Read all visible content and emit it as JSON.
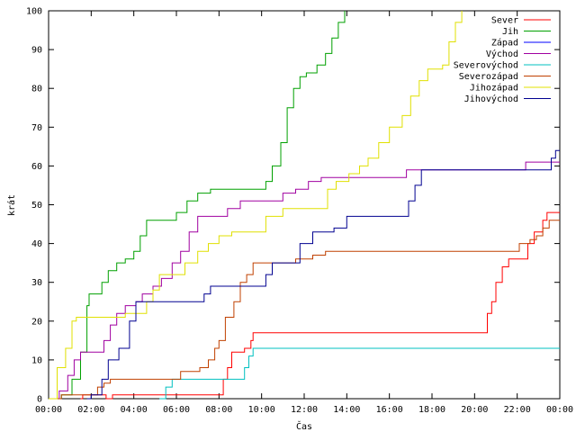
{
  "chart_data": {
    "type": "line",
    "title": "",
    "xlabel": "Čas",
    "ylabel": "krát",
    "xlim": [
      0,
      24
    ],
    "ylim": [
      0,
      100
    ],
    "x_ticks": [
      {
        "value": 0,
        "label": "00:00"
      },
      {
        "value": 2,
        "label": "02:00"
      },
      {
        "value": 4,
        "label": "04:00"
      },
      {
        "value": 6,
        "label": "06:00"
      },
      {
        "value": 8,
        "label": "08:00"
      },
      {
        "value": 10,
        "label": "10:00"
      },
      {
        "value": 12,
        "label": "12:00"
      },
      {
        "value": 14,
        "label": "14:00"
      },
      {
        "value": 16,
        "label": "16:00"
      },
      {
        "value": 18,
        "label": "18:00"
      },
      {
        "value": 20,
        "label": "20:00"
      },
      {
        "value": 22,
        "label": "22:00"
      },
      {
        "value": 24,
        "label": "00:00"
      }
    ],
    "y_ticks": [
      0,
      10,
      20,
      30,
      40,
      50,
      60,
      70,
      80,
      90,
      100
    ],
    "grid": false,
    "legend_position": "top-right",
    "series": [
      {
        "name": "Sever",
        "color": "#ff0000",
        "points": [
          [
            1.5,
            0
          ],
          [
            1.6,
            1
          ],
          [
            2.6,
            1
          ],
          [
            2.7,
            0
          ],
          [
            2.9,
            0
          ],
          [
            3.0,
            1
          ],
          [
            4.0,
            1
          ],
          [
            4.1,
            1
          ],
          [
            6.5,
            1
          ],
          [
            8.0,
            1
          ],
          [
            8.2,
            5
          ],
          [
            8.4,
            8
          ],
          [
            8.6,
            12
          ],
          [
            9.2,
            13
          ],
          [
            9.5,
            15
          ],
          [
            9.6,
            17
          ],
          [
            20.4,
            17
          ],
          [
            20.6,
            22
          ],
          [
            20.8,
            25
          ],
          [
            21.0,
            30
          ],
          [
            21.3,
            34
          ],
          [
            21.6,
            36
          ],
          [
            22.2,
            36
          ],
          [
            22.5,
            40
          ],
          [
            22.8,
            43
          ],
          [
            23.2,
            46
          ],
          [
            23.4,
            48
          ],
          [
            24,
            48
          ]
        ]
      },
      {
        "name": "Jih",
        "color": "#00a000",
        "points": [
          [
            0,
            0
          ],
          [
            0.6,
            1
          ],
          [
            1.1,
            5
          ],
          [
            1.5,
            12
          ],
          [
            1.8,
            24
          ],
          [
            1.9,
            27
          ],
          [
            2.3,
            27
          ],
          [
            2.5,
            30
          ],
          [
            2.8,
            33
          ],
          [
            3.2,
            35
          ],
          [
            3.6,
            36
          ],
          [
            4.0,
            38
          ],
          [
            4.3,
            42
          ],
          [
            4.6,
            46
          ],
          [
            5.6,
            46
          ],
          [
            6.0,
            48
          ],
          [
            6.5,
            51
          ],
          [
            7.0,
            53
          ],
          [
            7.6,
            54
          ],
          [
            9.9,
            54
          ],
          [
            10.2,
            56
          ],
          [
            10.5,
            60
          ],
          [
            10.9,
            66
          ],
          [
            11.2,
            75
          ],
          [
            11.5,
            80
          ],
          [
            11.8,
            83
          ],
          [
            12.1,
            84
          ],
          [
            12.6,
            86
          ],
          [
            13.0,
            89
          ],
          [
            13.3,
            93
          ],
          [
            13.6,
            97
          ],
          [
            13.9,
            100
          ]
        ]
      },
      {
        "name": "Západ",
        "color": "#0000ff",
        "points": []
      },
      {
        "name": "Východ",
        "color": "#a000a0",
        "points": [
          [
            0,
            0
          ],
          [
            0.5,
            2
          ],
          [
            0.9,
            6
          ],
          [
            1.2,
            10
          ],
          [
            1.5,
            12
          ],
          [
            2.2,
            12
          ],
          [
            2.6,
            15
          ],
          [
            2.9,
            19
          ],
          [
            3.2,
            22
          ],
          [
            3.6,
            24
          ],
          [
            4.1,
            25
          ],
          [
            4.4,
            27
          ],
          [
            4.9,
            29
          ],
          [
            5.3,
            31
          ],
          [
            5.8,
            35
          ],
          [
            6.2,
            38
          ],
          [
            6.6,
            43
          ],
          [
            7.0,
            47
          ],
          [
            7.8,
            47
          ],
          [
            8.4,
            49
          ],
          [
            9.0,
            51
          ],
          [
            10.4,
            51
          ],
          [
            11.0,
            53
          ],
          [
            11.6,
            54
          ],
          [
            12.2,
            56
          ],
          [
            12.8,
            57
          ],
          [
            16.0,
            57
          ],
          [
            16.8,
            59
          ],
          [
            22.0,
            59
          ],
          [
            22.4,
            61
          ],
          [
            24,
            61
          ]
        ]
      },
      {
        "name": "Severovýchod",
        "color": "#00c0c0",
        "points": [
          [
            5.2,
            0
          ],
          [
            5.5,
            3
          ],
          [
            5.8,
            5
          ],
          [
            9.0,
            5
          ],
          [
            9.2,
            8
          ],
          [
            9.4,
            11
          ],
          [
            9.6,
            13
          ],
          [
            24,
            13
          ]
        ]
      },
      {
        "name": "Severozápad",
        "color": "#c04000",
        "points": [
          [
            0.4,
            0
          ],
          [
            0.6,
            1
          ],
          [
            2.1,
            1
          ],
          [
            2.3,
            3
          ],
          [
            2.6,
            4
          ],
          [
            2.9,
            5
          ],
          [
            5.6,
            5
          ],
          [
            6.2,
            7
          ],
          [
            6.9,
            7
          ],
          [
            7.1,
            8
          ],
          [
            7.5,
            10
          ],
          [
            7.8,
            13
          ],
          [
            8.0,
            15
          ],
          [
            8.3,
            21
          ],
          [
            8.7,
            25
          ],
          [
            9.0,
            30
          ],
          [
            9.3,
            32
          ],
          [
            9.6,
            35
          ],
          [
            11.0,
            35
          ],
          [
            11.6,
            36
          ],
          [
            12.4,
            37
          ],
          [
            13.0,
            38
          ],
          [
            20.4,
            38
          ],
          [
            21.8,
            38
          ],
          [
            22.1,
            40
          ],
          [
            22.6,
            41
          ],
          [
            22.9,
            42
          ],
          [
            23.2,
            44
          ],
          [
            23.5,
            46
          ],
          [
            24,
            46
          ]
        ]
      },
      {
        "name": "Jihozápad",
        "color": "#e0e000",
        "points": [
          [
            0,
            0
          ],
          [
            0.4,
            8
          ],
          [
            0.8,
            13
          ],
          [
            1.1,
            20
          ],
          [
            1.3,
            21
          ],
          [
            3.3,
            21
          ],
          [
            3.6,
            22
          ],
          [
            4.4,
            22
          ],
          [
            4.6,
            25
          ],
          [
            4.9,
            28
          ],
          [
            5.2,
            32
          ],
          [
            6.0,
            32
          ],
          [
            6.4,
            35
          ],
          [
            7.0,
            38
          ],
          [
            7.5,
            40
          ],
          [
            8.0,
            42
          ],
          [
            8.6,
            43
          ],
          [
            9.8,
            43
          ],
          [
            10.2,
            47
          ],
          [
            11.0,
            49
          ],
          [
            12.7,
            49
          ],
          [
            13.1,
            54
          ],
          [
            13.5,
            56
          ],
          [
            14.1,
            58
          ],
          [
            14.6,
            60
          ],
          [
            15.0,
            62
          ],
          [
            15.5,
            66
          ],
          [
            16.0,
            70
          ],
          [
            16.6,
            73
          ],
          [
            17.0,
            78
          ],
          [
            17.4,
            82
          ],
          [
            17.8,
            85
          ],
          [
            18.5,
            86
          ],
          [
            18.8,
            92
          ],
          [
            19.1,
            97
          ],
          [
            19.4,
            100
          ]
        ]
      },
      {
        "name": "Jihovýchod",
        "color": "#000090",
        "points": [
          [
            1.8,
            0
          ],
          [
            2.0,
            1
          ],
          [
            2.5,
            5
          ],
          [
            2.8,
            10
          ],
          [
            3.3,
            13
          ],
          [
            3.8,
            20
          ],
          [
            4.1,
            25
          ],
          [
            6.9,
            25
          ],
          [
            7.3,
            27
          ],
          [
            7.6,
            29
          ],
          [
            9.8,
            29
          ],
          [
            10.2,
            32
          ],
          [
            10.5,
            35
          ],
          [
            11.4,
            35
          ],
          [
            11.8,
            40
          ],
          [
            12.4,
            43
          ],
          [
            13.4,
            44
          ],
          [
            14.0,
            47
          ],
          [
            16.6,
            47
          ],
          [
            16.9,
            51
          ],
          [
            17.2,
            55
          ],
          [
            17.5,
            59
          ],
          [
            23.4,
            59
          ],
          [
            23.6,
            62
          ],
          [
            23.8,
            64
          ],
          [
            24,
            64
          ]
        ]
      }
    ]
  }
}
